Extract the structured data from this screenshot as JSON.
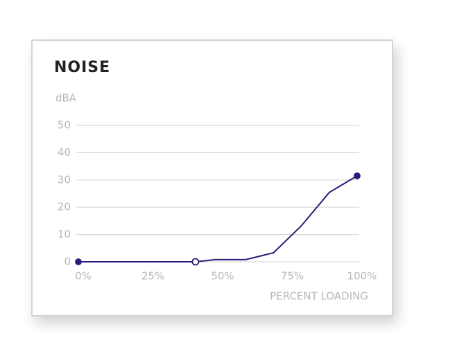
{
  "chart_data": {
    "type": "line",
    "title": "NOISE",
    "y_label": "dBA",
    "x_label": "PERCENT LOADING",
    "x": [
      0,
      42,
      49,
      60,
      70,
      80,
      90,
      100
    ],
    "series": [
      {
        "name": "Noise",
        "color": "#2b1a7a",
        "values": [
          0,
          0,
          0.8,
          0.8,
          3.3,
          13.2,
          25.4,
          31.5
        ],
        "markers": [
          "filled",
          "open",
          null,
          null,
          null,
          null,
          null,
          "filled"
        ]
      }
    ],
    "xlim": [
      0,
      100
    ],
    "xticks": [
      {
        "value": 0,
        "label": "0%"
      },
      {
        "value": 25,
        "label": "25%"
      },
      {
        "value": 50,
        "label": "50%"
      },
      {
        "value": 75,
        "label": "75%"
      },
      {
        "value": 100,
        "label": "100%"
      }
    ],
    "ylim": [
      0,
      50
    ],
    "yticks": [
      0,
      10,
      20,
      30,
      40,
      50
    ],
    "grid": true
  }
}
